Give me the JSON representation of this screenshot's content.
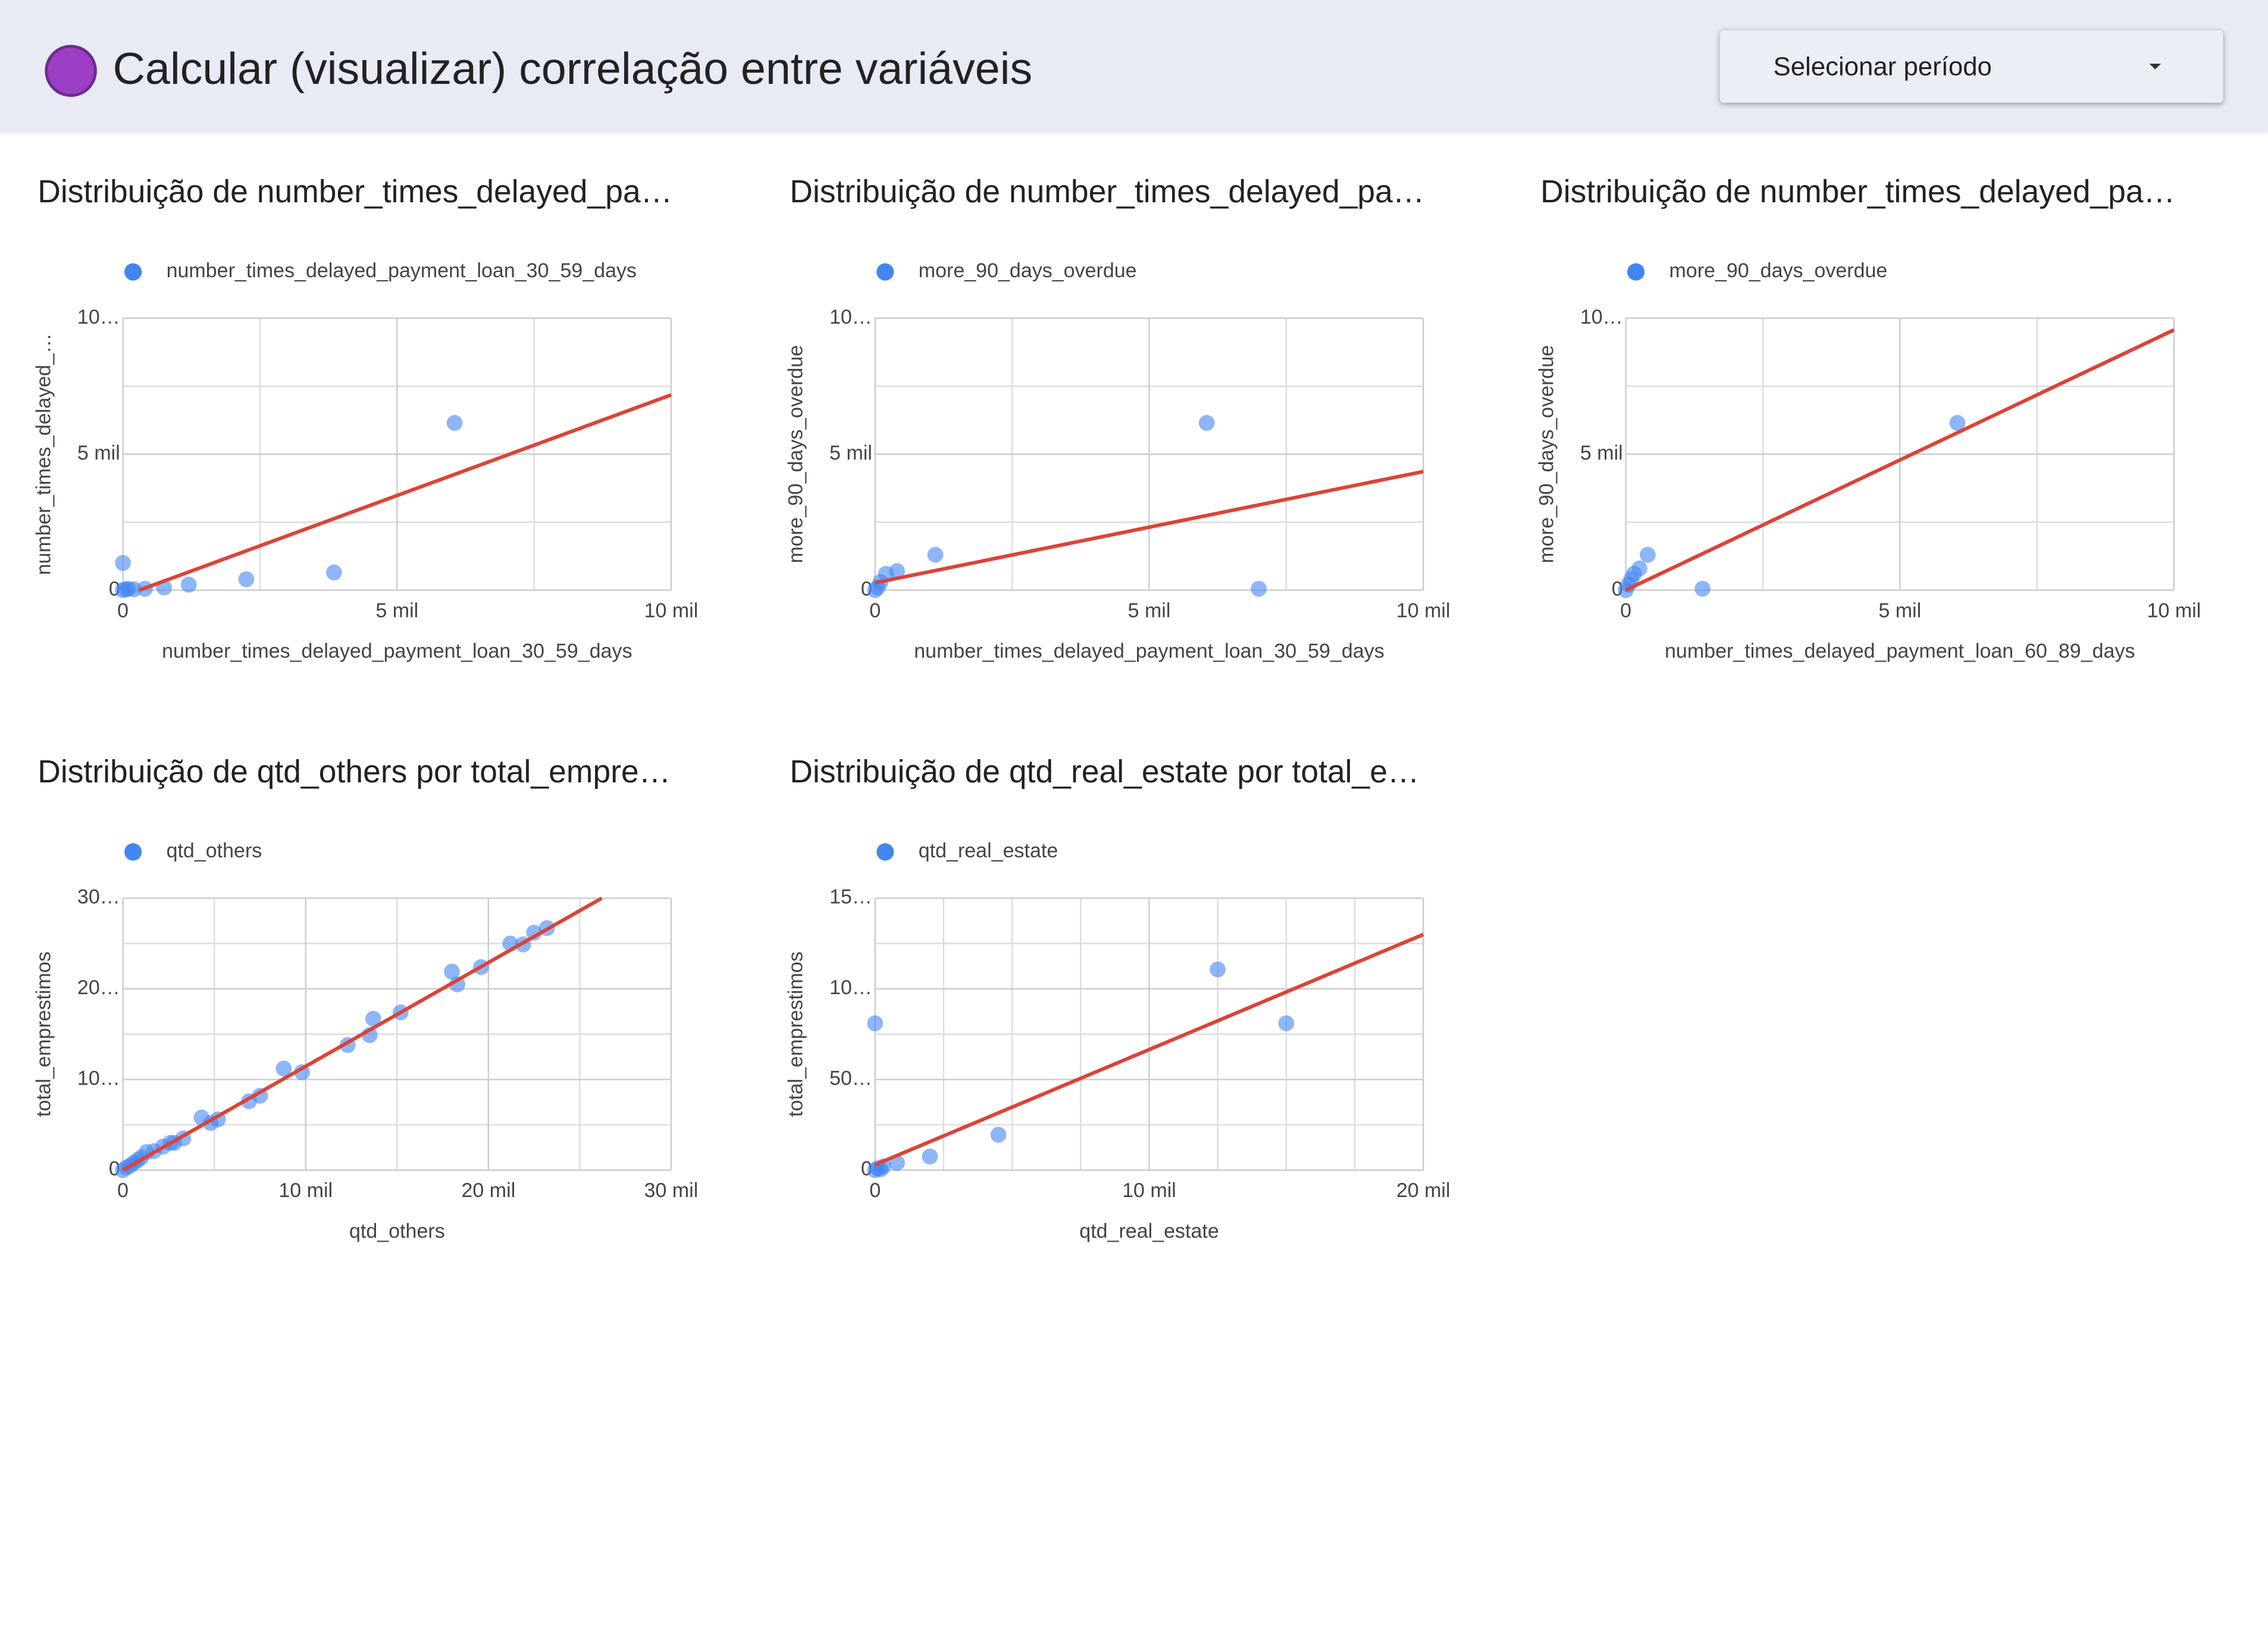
{
  "header": {
    "title": "Calcular (visualizar) correlação entre variáveis",
    "dropdown": "Selecionar período"
  },
  "chart_data": [
    {
      "type": "scatter",
      "title": "Distribuição de number_times_delayed_pa…",
      "xlabel": "number_times_delayed_payment_loan_30_59_days",
      "ylabel": "number_times_delayed_…",
      "xlim": [
        0,
        10000
      ],
      "ylim": [
        0,
        10000
      ],
      "xticks": [
        0,
        {
          "value": 5000,
          "label": "5 mil"
        },
        {
          "value": 10000,
          "label": "10 mil"
        }
      ],
      "yticks": [
        0,
        {
          "value": 5000,
          "label": "5 mil"
        },
        {
          "value": 10000,
          "label": "10…"
        }
      ],
      "xgrid": [
        2500,
        7500
      ],
      "ygrid": [
        2500,
        7500
      ],
      "series": [
        {
          "name": "number_times_delayed_payment_loan_30_59_days",
          "color": "#4285f4",
          "x": [
            0,
            0,
            50,
            100,
            200,
            400,
            750,
            1200,
            2250,
            3850,
            6050
          ],
          "y": [
            1000,
            0,
            30,
            50,
            30,
            50,
            100,
            200,
            400,
            650,
            6150
          ]
        }
      ],
      "trendline": {
        "color": "#db4437",
        "x": [
          300,
          10000
        ],
        "y": [
          0,
          7180
        ]
      }
    },
    {
      "type": "scatter",
      "title": "Distribuição de number_times_delayed_pa…",
      "xlabel": "number_times_delayed_payment_loan_30_59_days",
      "ylabel": "more_90_days_overdue",
      "xlim": [
        0,
        10000
      ],
      "ylim": [
        0,
        10000
      ],
      "xticks": [
        0,
        {
          "value": 5000,
          "label": "5 mil"
        },
        {
          "value": 10000,
          "label": "10 mil"
        }
      ],
      "yticks": [
        0,
        {
          "value": 5000,
          "label": "5 mil"
        },
        {
          "value": 10000,
          "label": "10…"
        }
      ],
      "xgrid": [
        2500,
        7500
      ],
      "ygrid": [
        2500,
        7500
      ],
      "series": [
        {
          "name": "more_90_days_overdue",
          "color": "#4285f4",
          "x": [
            0,
            50,
            100,
            200,
            400,
            1100,
            6050,
            7000
          ],
          "y": [
            0,
            100,
            300,
            600,
            700,
            1300,
            6150,
            50
          ]
        }
      ],
      "trendline": {
        "color": "#db4437",
        "x": [
          0,
          10000
        ],
        "y": [
          270,
          4360
        ]
      }
    },
    {
      "type": "scatter",
      "title": "Distribuição de number_times_delayed_pa…",
      "xlabel": "number_times_delayed_payment_loan_60_89_days",
      "ylabel": "more_90_days_overdue",
      "xlim": [
        0,
        10000
      ],
      "ylim": [
        0,
        10000
      ],
      "xticks": [
        0,
        {
          "value": 5000,
          "label": "5 mil"
        },
        {
          "value": 10000,
          "label": "10 mil"
        }
      ],
      "yticks": [
        0,
        {
          "value": 5000,
          "label": "5 mil"
        },
        {
          "value": 10000,
          "label": "10…"
        }
      ],
      "xgrid": [
        2500,
        7500
      ],
      "ygrid": [
        2500,
        7500
      ],
      "series": [
        {
          "name": "more_90_days_overdue",
          "color": "#4285f4",
          "x": [
            0,
            50,
            100,
            150,
            250,
            400,
            1400,
            6050
          ],
          "y": [
            0,
            200,
            400,
            600,
            800,
            1300,
            50,
            6150
          ]
        }
      ],
      "trendline": {
        "color": "#db4437",
        "x": [
          0,
          10000
        ],
        "y": [
          0,
          9570
        ]
      }
    },
    {
      "type": "scatter",
      "title": "Distribuição de qtd_others por total_empre…",
      "xlabel": "qtd_others",
      "ylabel": "total_emprestimos",
      "xlim": [
        0,
        30000
      ],
      "ylim": [
        0,
        30000
      ],
      "xticks": [
        0,
        {
          "value": 10000,
          "label": "10 mil"
        },
        {
          "value": 20000,
          "label": "20 mil"
        },
        {
          "value": 30000,
          "label": "30 mil"
        }
      ],
      "yticks": [
        0,
        {
          "value": 10000,
          "label": "10…"
        },
        {
          "value": 20000,
          "label": "20…"
        },
        {
          "value": 30000,
          "label": "30…"
        }
      ],
      "xgrid": [
        5000,
        15000,
        25000
      ],
      "ygrid": [
        5000,
        15000,
        25000
      ],
      "series": [
        {
          "name": "qtd_others",
          "color": "#4285f4",
          "x": [
            0,
            200,
            400,
            600,
            800,
            1000,
            1300,
            1700,
            2200,
            2600,
            2800,
            3300,
            4300,
            4800,
            5200,
            6900,
            7500,
            8800,
            9800,
            12300,
            13500,
            13700,
            15200,
            18000,
            18300,
            19600,
            21200,
            21900,
            22500,
            23200
          ],
          "y": [
            0,
            300,
            500,
            800,
            1100,
            1400,
            2000,
            2100,
            2600,
            3000,
            3000,
            3500,
            5800,
            5200,
            5600,
            7600,
            8200,
            11200,
            10800,
            13800,
            14900,
            16700,
            17400,
            21900,
            20500,
            22400,
            25000,
            24900,
            26200,
            26700
          ]
        }
      ],
      "trendline": {
        "color": "#db4437",
        "x": [
          0,
          26200
        ],
        "y": [
          0,
          30000
        ]
      }
    },
    {
      "type": "scatter",
      "title": "Distribuição de qtd_real_estate por total_e…",
      "xlabel": "qtd_real_estate",
      "ylabel": "total_emprestimos",
      "xlim": [
        0,
        20000
      ],
      "ylim": [
        0,
        150000
      ],
      "xticks": [
        0,
        {
          "value": 10000,
          "label": "10 mil"
        },
        {
          "value": 20000,
          "label": "20 mil"
        }
      ],
      "yticks": [
        0,
        {
          "value": 50000,
          "label": "50…"
        },
        {
          "value": 100000,
          "label": "10…"
        },
        {
          "value": 150000,
          "label": "15…"
        }
      ],
      "xgrid": [
        2500,
        5000,
        7500,
        12500,
        15000,
        17500
      ],
      "ygrid": [
        25000,
        75000,
        125000
      ],
      "series": [
        {
          "name": "qtd_real_estate",
          "color": "#4285f4",
          "x": [
            0,
            0,
            100,
            200,
            300,
            800,
            2000,
            4500,
            12500,
            15000
          ],
          "y": [
            81000,
            0,
            1000,
            500,
            2000,
            4000,
            7500,
            19500,
            110700,
            81000
          ]
        }
      ],
      "trendline": {
        "color": "#db4437",
        "x": [
          0,
          20000
        ],
        "y": [
          3000,
          130000
        ]
      }
    }
  ]
}
